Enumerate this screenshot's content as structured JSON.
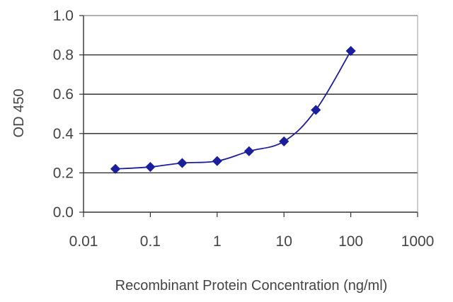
{
  "chart_data": {
    "type": "line",
    "title": "",
    "xlabel": "Recombinant Protein Concentration (ng/ml)",
    "ylabel": "OD 450",
    "xscale": "log",
    "xlim": [
      0.01,
      1000
    ],
    "ylim": [
      0.0,
      1.0
    ],
    "x_ticks": [
      "0.01",
      "0.1",
      "1",
      "10",
      "100",
      "1000"
    ],
    "y_ticks": [
      "0.0",
      "0.2",
      "0.4",
      "0.6",
      "0.8",
      "1.0"
    ],
    "grid": "horizontal",
    "legend": "none",
    "line_color": "#1b1f9c",
    "marker": "diamond",
    "series": [
      {
        "x": [
          0.03,
          0.1,
          0.3,
          1,
          3,
          10,
          30,
          100
        ],
        "y": [
          0.22,
          0.23,
          0.25,
          0.26,
          0.31,
          0.36,
          0.52,
          0.82
        ]
      }
    ]
  }
}
